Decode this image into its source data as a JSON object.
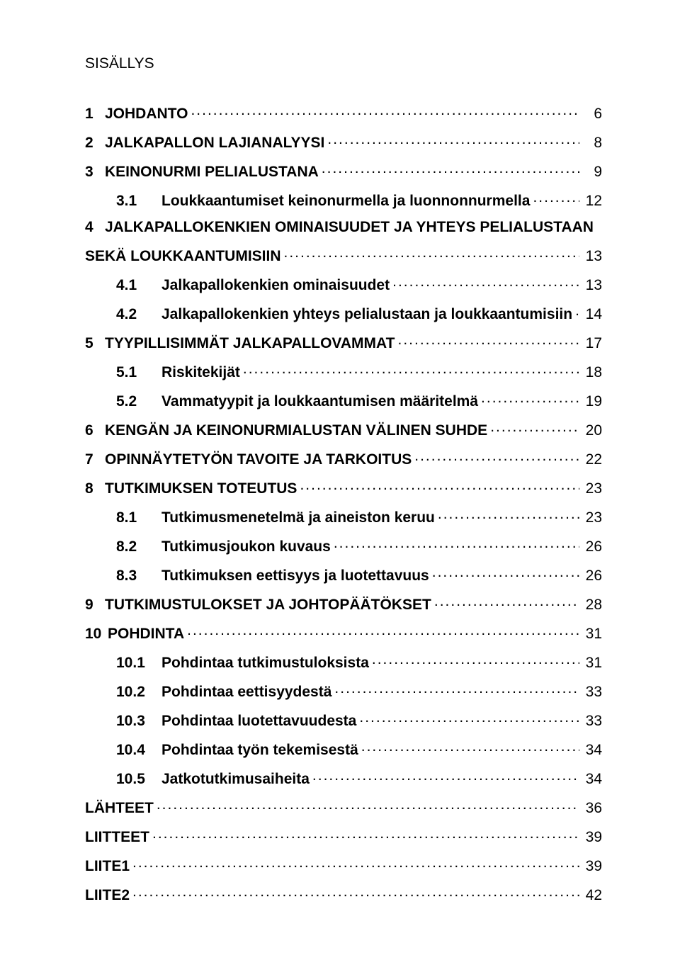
{
  "title": "SISÄLLYS",
  "entries": [
    {
      "kind": "top",
      "num": "1",
      "label": "JOHDANTO",
      "page": "6",
      "bold": true,
      "extraGap": true
    },
    {
      "kind": "top",
      "num": "2",
      "label": "JALKAPALLON LAJIANALYYSI",
      "page": "8",
      "bold": true
    },
    {
      "kind": "top",
      "num": "3",
      "label": "KEINONURMI PELIALUSTANA",
      "page": "9",
      "bold": true
    },
    {
      "kind": "sub",
      "num": "3.1",
      "label": "Loukkaantumiset keinonurmella ja luonnonnurmella",
      "page": "12",
      "bold": true
    },
    {
      "kind": "multi",
      "num": "4",
      "line1": "JALKAPALLOKENKIEN OMINAISUUDET JA YHTEYS PELIALUSTAAN",
      "line2": "SEKÄ LOUKKAANTUMISIIN",
      "page": "13",
      "bold": true
    },
    {
      "kind": "sub",
      "num": "4.1",
      "label": "Jalkapallokenkien ominaisuudet",
      "page": "13",
      "bold": true
    },
    {
      "kind": "sub",
      "num": "4.2",
      "label": "Jalkapallokenkien yhteys pelialustaan ja loukkaantumisiin",
      "page": "14",
      "bold": true
    },
    {
      "kind": "top",
      "num": "5",
      "label": "TYYPILLISIMMÄT JALKAPALLOVAMMAT",
      "page": "17",
      "bold": true
    },
    {
      "kind": "sub",
      "num": "5.1",
      "label": "Riskitekijät",
      "page": "18",
      "bold": true
    },
    {
      "kind": "sub",
      "num": "5.2",
      "label": "Vammatyypit ja loukkaantumisen määritelmä",
      "page": "19",
      "bold": true
    },
    {
      "kind": "top",
      "num": "6",
      "label": "KENGÄN JA KEINONURMIALUSTAN VÄLINEN SUHDE",
      "page": "20",
      "bold": true
    },
    {
      "kind": "top",
      "num": "7",
      "label": "OPINNÄYTETYÖN TAVOITE JA TARKOITUS",
      "page": "22",
      "bold": true
    },
    {
      "kind": "top",
      "num": "8",
      "label": "TUTKIMUKSEN TOTEUTUS",
      "page": "23",
      "bold": true
    },
    {
      "kind": "sub",
      "num": "8.1",
      "label": "Tutkimusmenetelmä ja aineiston keruu",
      "page": "23",
      "bold": true
    },
    {
      "kind": "sub",
      "num": "8.2",
      "label": "Tutkimusjoukon kuvaus",
      "page": "26",
      "bold": true
    },
    {
      "kind": "sub",
      "num": "8.3",
      "label": "Tutkimuksen eettisyys ja luotettavuus",
      "page": "26",
      "bold": true
    },
    {
      "kind": "top",
      "num": "9",
      "label": "TUTKIMUSTULOKSET JA JOHTOPÄÄTÖKSET",
      "page": "28",
      "bold": true
    },
    {
      "kind": "top",
      "num": "10",
      "label": "POHDINTA",
      "page": "31",
      "bold": true,
      "tight": true
    },
    {
      "kind": "sub",
      "num": "10.1",
      "label": "Pohdintaa tutkimustuloksista",
      "page": "31",
      "bold": true
    },
    {
      "kind": "sub",
      "num": "10.2",
      "label": "Pohdintaa eettisyydestä",
      "page": "33",
      "bold": true
    },
    {
      "kind": "sub",
      "num": "10.3",
      "label": "Pohdintaa luotettavuudesta",
      "page": "33",
      "bold": true
    },
    {
      "kind": "sub",
      "num": "10.4",
      "label": "Pohdintaa työn tekemisestä",
      "page": "34",
      "bold": true
    },
    {
      "kind": "sub",
      "num": "10.5",
      "label": "Jatkotutkimusaiheita",
      "page": "34",
      "bold": true
    },
    {
      "kind": "plain",
      "label": "LÄHTEET",
      "page": "36",
      "bold": true
    },
    {
      "kind": "plain",
      "label": "LIITTEET",
      "page": "39",
      "bold": true
    },
    {
      "kind": "plain",
      "label": "LIITE1",
      "page": "39",
      "bold": true
    },
    {
      "kind": "plain",
      "label": "LIITE2",
      "page": "42",
      "bold": true
    }
  ]
}
